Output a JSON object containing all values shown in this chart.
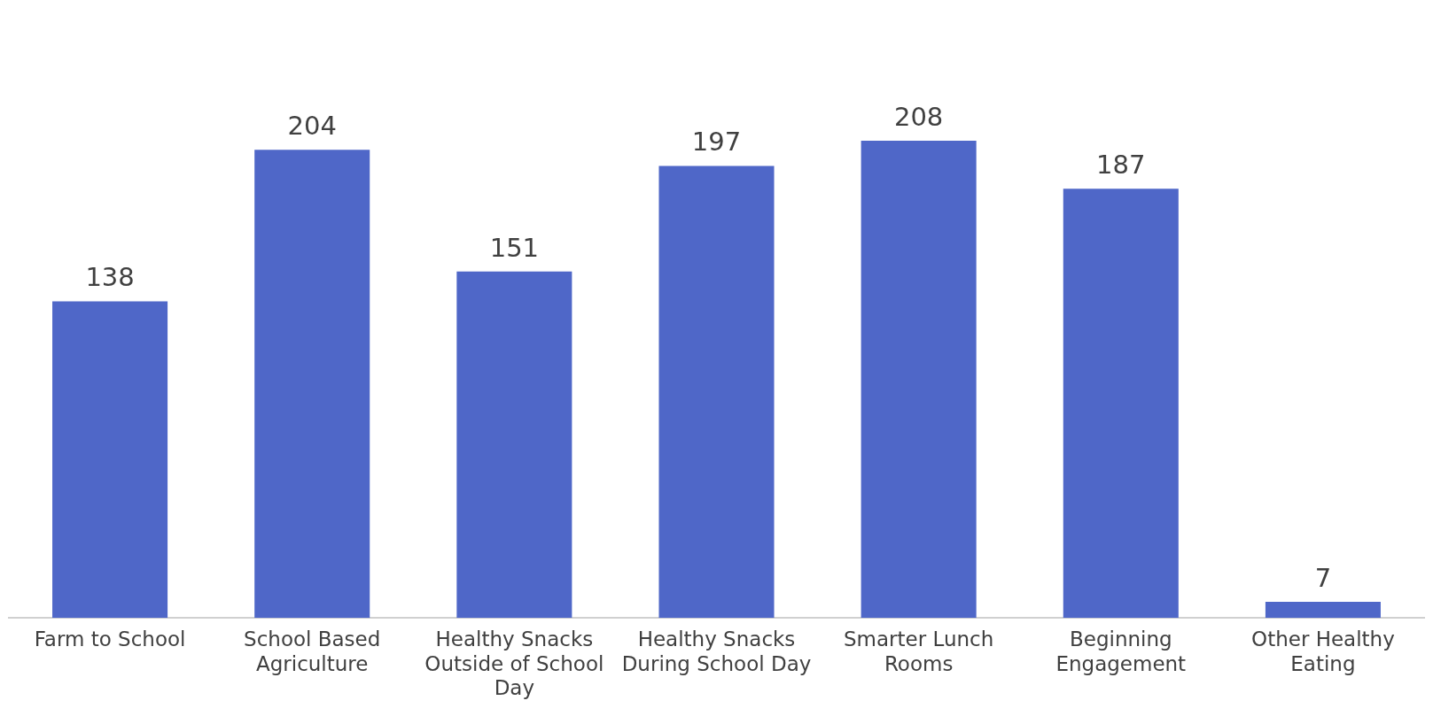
{
  "chart_data": {
    "type": "bar",
    "categories": [
      "Farm to School",
      "School Based Agriculture",
      "Healthy Snacks Outside of School Day",
      "Healthy Snacks During School Day",
      "Smarter Lunch Rooms",
      "Beginning Engagement",
      "Other Healthy Eating"
    ],
    "values": [
      138,
      204,
      151,
      197,
      208,
      187,
      7
    ],
    "color": "#4f67c8",
    "data_labels": true,
    "grid": false,
    "legend": false
  }
}
